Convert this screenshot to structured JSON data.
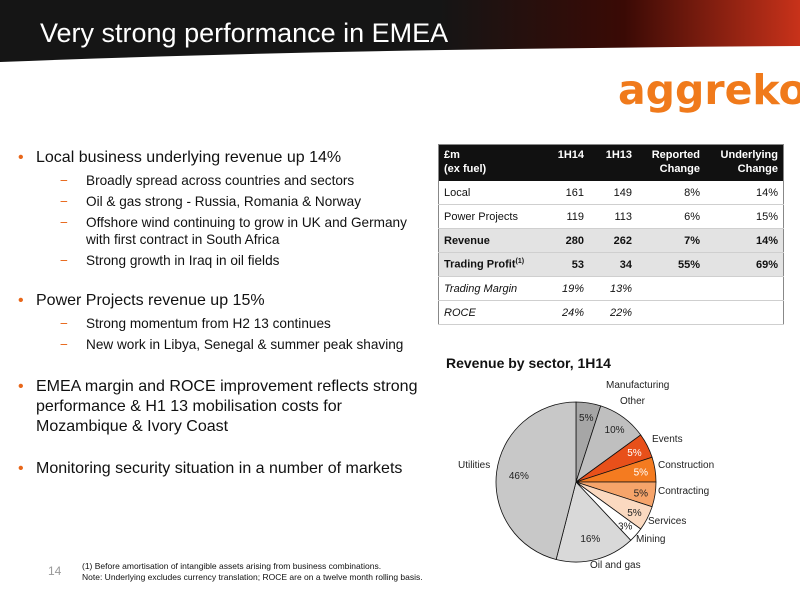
{
  "header": {
    "title": "Very strong performance in EMEA"
  },
  "logo": {
    "text": "aggreko"
  },
  "bullets": [
    {
      "text": "Local business underlying revenue up 14%",
      "subs": [
        "Broadly spread across countries and sectors",
        "Oil & gas strong - Russia, Romania & Norway",
        "Offshore wind continuing to grow in UK and Germany with first contract in South Africa",
        "Strong growth in Iraq in oil fields"
      ]
    },
    {
      "text": "Power Projects revenue up 15%",
      "subs": [
        "Strong momentum from H2 13 continues",
        "New work in Libya, Senegal &  summer peak shaving"
      ]
    },
    {
      "text": "EMEA margin and ROCE improvement reflects strong performance & H1 13 mobilisation costs for Mozambique & Ivory Coast",
      "subs": []
    },
    {
      "text": "Monitoring security situation in a number of markets",
      "subs": []
    }
  ],
  "table": {
    "headers": [
      "£m\n(ex fuel)",
      "1H14",
      "1H13",
      "Reported Change",
      "Underlying Change"
    ],
    "rows": [
      {
        "label": "Local",
        "cells": [
          "161",
          "149",
          "8%",
          "14%"
        ],
        "style": ""
      },
      {
        "label": "Power Projects",
        "cells": [
          "119",
          "113",
          "6%",
          "15%"
        ],
        "style": ""
      },
      {
        "label": "Revenue",
        "cells": [
          "280",
          "262",
          "7%",
          "14%"
        ],
        "style": "bold"
      },
      {
        "label": "Trading Profit",
        "sup": "(1)",
        "cells": [
          "53",
          "34",
          "55%",
          "69%"
        ],
        "style": "bold"
      },
      {
        "label": "Trading Margin",
        "cells": [
          "19%",
          "13%",
          "",
          ""
        ],
        "style": "ital"
      },
      {
        "label": "ROCE",
        "cells": [
          "24%",
          "22%",
          "",
          ""
        ],
        "style": "ital"
      }
    ]
  },
  "chart_data": {
    "type": "pie",
    "title": "Revenue by sector, 1H14",
    "slices": [
      {
        "label": "Manufacturing",
        "value": 5,
        "pct_label": "5%",
        "color": "#a6a6a6"
      },
      {
        "label": "Other",
        "value": 10,
        "pct_label": "10%",
        "color": "#bfbfbf"
      },
      {
        "label": "Events",
        "value": 5,
        "pct_label": "5%",
        "color": "#e8501a"
      },
      {
        "label": "Construction",
        "value": 5,
        "pct_label": "5%",
        "color": "#f47b20"
      },
      {
        "label": "Contracting",
        "value": 5,
        "pct_label": "5%",
        "color": "#f6a46a"
      },
      {
        "label": "Services",
        "value": 5,
        "pct_label": "5%",
        "color": "#fbd9c0"
      },
      {
        "label": "Mining",
        "value": 3,
        "pct_label": "3%",
        "color": "#ffffff"
      },
      {
        "label": "Oil and gas",
        "value": 16,
        "pct_label": "16%",
        "color": "#d9d9d9"
      },
      {
        "label": "Utilities",
        "value": 46,
        "pct_label": "46%",
        "color": "#c8c8c8"
      }
    ]
  },
  "footer": {
    "page_number": "14",
    "note1": "(1)    Before amortisation of intangible assets arising from business combinations.",
    "note2": "Note: Underlying excludes currency translation; ROCE are on a twelve month rolling basis."
  }
}
